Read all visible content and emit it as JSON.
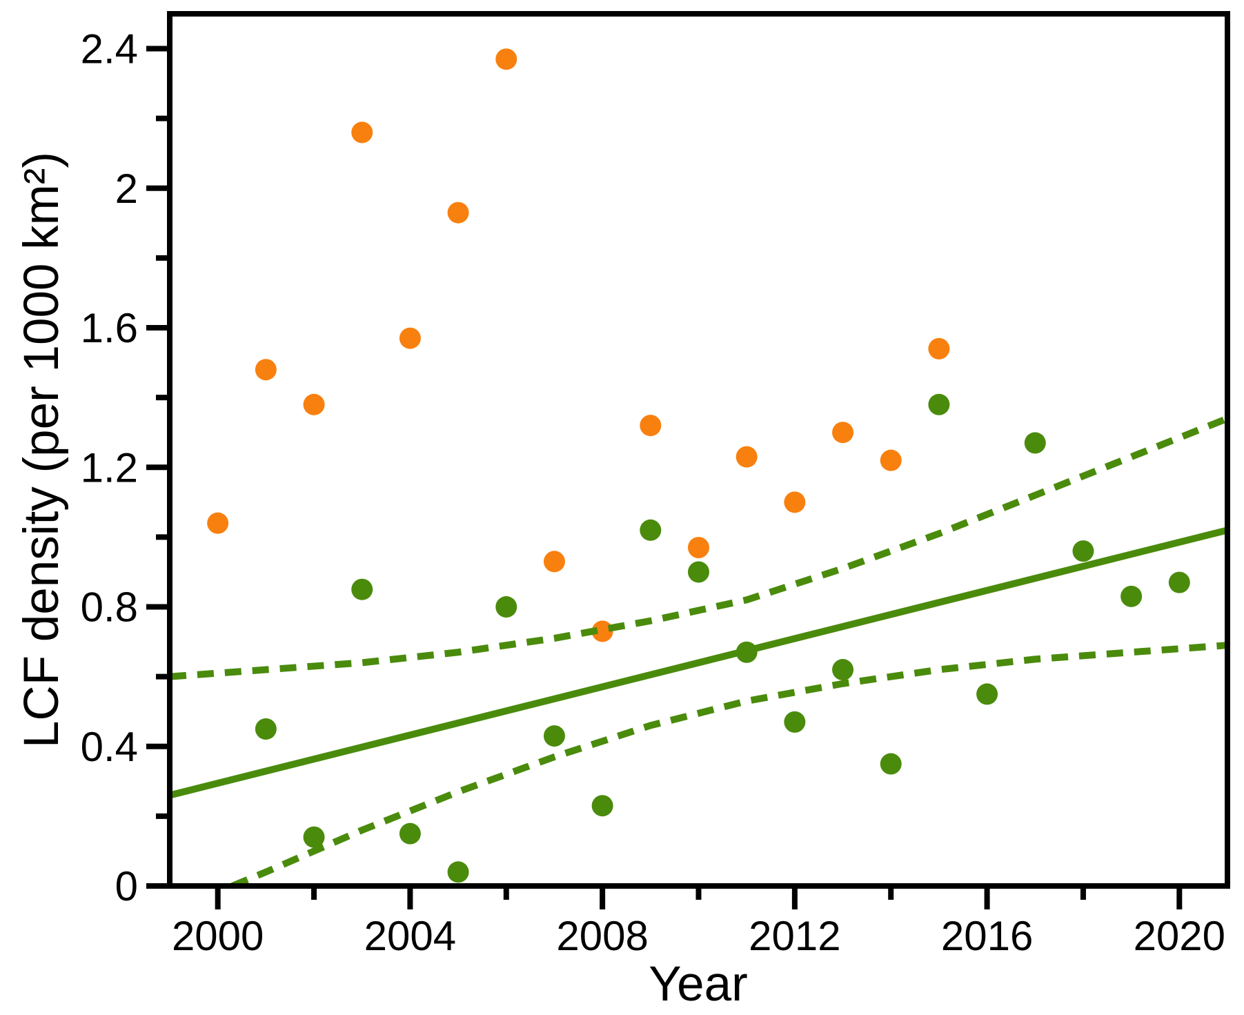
{
  "figure": {
    "background": "#FFFFFF",
    "axis_color": "#000000"
  },
  "chart_data": {
    "type": "scatter",
    "title": "",
    "xlabel": "Year",
    "ylabel": "LCF density (per 1000 km²)",
    "xlim": [
      1999,
      2021
    ],
    "ylim": [
      0,
      2.5
    ],
    "grid": false,
    "legend_position": "none",
    "x_major_ticks": [
      2000,
      2004,
      2008,
      2012,
      2016,
      2020
    ],
    "x_major_tick_labels": [
      "2000",
      "2004",
      "2008",
      "2012",
      "2016",
      "2020"
    ],
    "x_minor_ticks": [
      2002,
      2006,
      2010,
      2014,
      2018
    ],
    "y_major_ticks": [
      0,
      0.4,
      0.8,
      1.2,
      1.6,
      2.0,
      2.4
    ],
    "y_major_tick_labels": [
      "0",
      "0.4",
      "0.8",
      "1.2",
      "1.6",
      "2",
      "2.4"
    ],
    "y_minor_ticks": [
      0.2,
      0.6,
      1.0,
      1.4,
      1.8,
      2.2
    ],
    "series": [
      {
        "name": "lcf-density-orange",
        "type": "scatter",
        "color": "#F8800F",
        "points": [
          [
            2000,
            1.04
          ],
          [
            2001,
            1.48
          ],
          [
            2002,
            1.38
          ],
          [
            2003,
            2.16
          ],
          [
            2004,
            1.57
          ],
          [
            2005,
            1.93
          ],
          [
            2006,
            2.37
          ],
          [
            2007,
            0.93
          ],
          [
            2008,
            0.73
          ],
          [
            2009,
            1.32
          ],
          [
            2010,
            0.97
          ],
          [
            2011,
            1.23
          ],
          [
            2012,
            1.1
          ],
          [
            2013,
            1.3
          ],
          [
            2014,
            1.22
          ],
          [
            2015,
            1.54
          ]
        ]
      },
      {
        "name": "lcf-density-green",
        "type": "scatter",
        "color": "#4A8B0C",
        "points": [
          [
            2001,
            0.45
          ],
          [
            2002,
            0.14
          ],
          [
            2003,
            0.85
          ],
          [
            2004,
            0.15
          ],
          [
            2005,
            0.04
          ],
          [
            2006,
            0.8
          ],
          [
            2007,
            0.43
          ],
          [
            2008,
            0.23
          ],
          [
            2009,
            1.02
          ],
          [
            2010,
            0.9
          ],
          [
            2011,
            0.67
          ],
          [
            2012,
            0.47
          ],
          [
            2013,
            0.62
          ],
          [
            2014,
            0.35
          ],
          [
            2015,
            1.38
          ],
          [
            2016,
            0.55
          ],
          [
            2017,
            1.27
          ],
          [
            2018,
            0.96
          ],
          [
            2019,
            0.83
          ],
          [
            2020,
            0.87
          ]
        ]
      },
      {
        "name": "regression-line",
        "type": "line",
        "style": "solid",
        "color": "#4A8B0C",
        "points": [
          [
            1999,
            0.26
          ],
          [
            2021,
            1.02
          ]
        ]
      },
      {
        "name": "ci-upper",
        "type": "line",
        "style": "dashed",
        "color": "#4A8B0C",
        "points": [
          [
            1999,
            0.6
          ],
          [
            2001,
            0.62
          ],
          [
            2003,
            0.64
          ],
          [
            2005,
            0.67
          ],
          [
            2007,
            0.71
          ],
          [
            2009,
            0.76
          ],
          [
            2011,
            0.82
          ],
          [
            2013,
            0.91
          ],
          [
            2015,
            1.01
          ],
          [
            2017,
            1.12
          ],
          [
            2019,
            1.23
          ],
          [
            2021,
            1.34
          ]
        ]
      },
      {
        "name": "ci-lower",
        "type": "line",
        "style": "dashed",
        "color": "#4A8B0C",
        "points": [
          [
            2000.3,
            0.0
          ],
          [
            2001,
            0.04
          ],
          [
            2003,
            0.16
          ],
          [
            2005,
            0.27
          ],
          [
            2007,
            0.37
          ],
          [
            2009,
            0.46
          ],
          [
            2011,
            0.53
          ],
          [
            2013,
            0.58
          ],
          [
            2015,
            0.62
          ],
          [
            2017,
            0.65
          ],
          [
            2019,
            0.67
          ],
          [
            2021,
            0.69
          ]
        ]
      }
    ]
  }
}
